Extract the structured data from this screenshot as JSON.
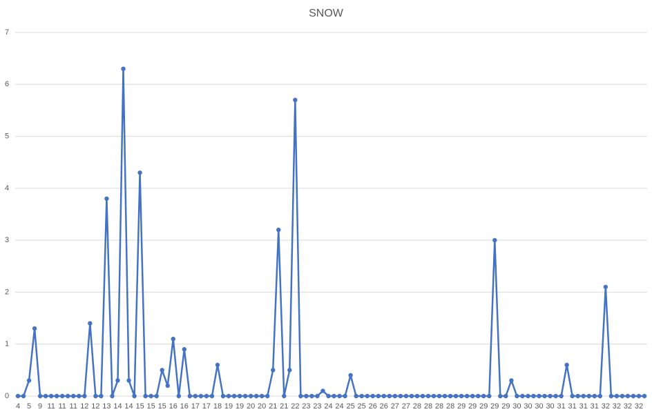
{
  "chart_data": {
    "type": "line",
    "title": "SNOW",
    "categories": [
      "4",
      null,
      "5",
      null,
      "9",
      null,
      "11",
      null,
      "11",
      null,
      "11",
      null,
      "12",
      null,
      "12",
      null,
      "13",
      null,
      "14",
      null,
      "14",
      null,
      "15",
      null,
      "15",
      null,
      "15",
      null,
      "16",
      null,
      "16",
      null,
      "17",
      null,
      "17",
      null,
      "18",
      null,
      "19",
      null,
      "19",
      null,
      "20",
      null,
      "20",
      null,
      "21",
      null,
      "21",
      null,
      "22",
      null,
      "23",
      null,
      "23",
      null,
      "24",
      null,
      "24",
      null,
      "25",
      null,
      "25",
      null,
      "26",
      null,
      "26",
      null,
      "27",
      null,
      "27",
      null,
      "28",
      null,
      "28",
      null,
      "28",
      null,
      "28",
      null,
      "29",
      null,
      "29",
      null,
      "29",
      null,
      "29",
      null,
      "29",
      null,
      "30",
      null,
      "30",
      null,
      "30",
      null,
      "30",
      null,
      "31",
      null,
      "31",
      null,
      "31",
      null,
      "31",
      null,
      "32",
      null,
      "32",
      null,
      "32",
      null,
      "32",
      null
    ],
    "series": [
      {
        "name": "SNOW",
        "color": "#4472c4",
        "values": [
          0,
          0,
          0.3,
          1.3,
          0,
          0,
          0,
          0,
          0,
          0,
          0,
          0,
          0,
          1.4,
          0,
          0,
          3.8,
          0,
          0.3,
          6.3,
          0.3,
          0,
          4.3,
          0,
          0,
          0,
          0.5,
          0.2,
          1.1,
          0,
          0.9,
          0,
          0,
          0,
          0,
          0,
          0.6,
          0,
          0,
          0,
          0,
          0,
          0,
          0,
          0,
          0,
          0.5,
          3.2,
          0,
          0.5,
          5.7,
          0,
          0,
          0,
          0,
          0.1,
          0,
          0,
          0,
          0,
          0.4,
          0,
          0,
          0,
          0,
          0,
          0,
          0,
          0,
          0,
          0,
          0,
          0,
          0,
          0,
          0,
          0,
          0,
          0,
          0,
          0,
          0,
          0,
          0,
          0,
          0,
          3.0,
          0,
          0,
          0.3,
          0,
          0,
          0,
          0,
          0,
          0,
          0,
          0,
          0,
          0.6,
          0,
          0,
          0,
          0,
          0,
          0,
          2.1,
          0,
          0,
          0,
          0,
          0,
          0,
          0
        ]
      }
    ],
    "ylim": [
      0,
      7
    ],
    "yticks": [
      0,
      1,
      2,
      3,
      4,
      5,
      6,
      7
    ],
    "grid": true
  }
}
